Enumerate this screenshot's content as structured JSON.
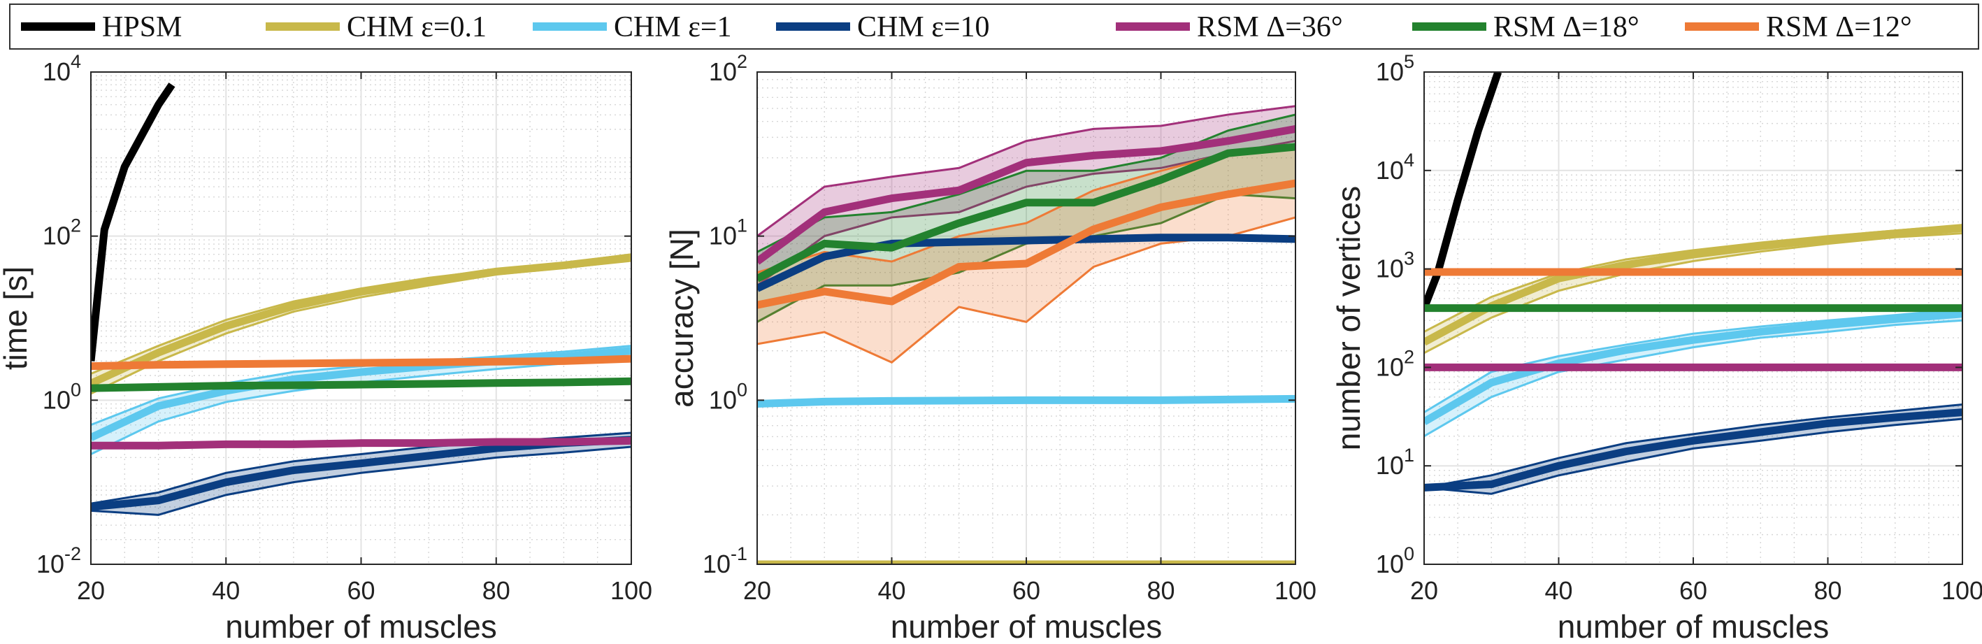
{
  "legend": {
    "items": [
      {
        "label": "HPSM",
        "color": "#000000"
      },
      {
        "label": "CHM ε=0.1",
        "color": "#C8B84A"
      },
      {
        "label": "CHM ε=1",
        "color": "#5DC8EE"
      },
      {
        "label": "CHM ε=10",
        "color": "#0B3E82"
      },
      {
        "label": "RSM Δ=36°",
        "color": "#A2307A"
      },
      {
        "label": "RSM Δ=18°",
        "color": "#23822E"
      },
      {
        "label": "RSM Δ=12°",
        "color": "#EE7A36"
      }
    ]
  },
  "chart_data": [
    {
      "type": "line",
      "xlabel": "number of muscles",
      "ylabel": "time [s]",
      "xlim": [
        20,
        100
      ],
      "ylim": [
        0.01,
        10000
      ],
      "yscale": "log",
      "xticks": [
        20,
        40,
        60,
        80,
        100
      ],
      "yticks": [
        {
          "value": 0.01,
          "base": "10",
          "exp": "-2"
        },
        {
          "value": 1,
          "base": "10",
          "exp": "0"
        },
        {
          "value": 100,
          "base": "10",
          "exp": "2"
        },
        {
          "value": 10000,
          "base": "10",
          "exp": "4"
        }
      ],
      "grid": true,
      "series": [
        {
          "name": "HPSM",
          "color": "#000000",
          "x": [
            20,
            22,
            25,
            30,
            32
          ],
          "y": [
            3,
            120,
            700,
            4000,
            7000
          ]
        },
        {
          "name": "CHM ε=0.1",
          "color": "#C8B84A",
          "x": [
            20,
            30,
            40,
            50,
            60,
            70,
            80,
            90,
            100
          ],
          "y": [
            1.6,
            3.8,
            8,
            14,
            21,
            28,
            37,
            44,
            55
          ],
          "band_low": [
            1.2,
            3.0,
            6.5,
            12,
            18,
            25,
            34,
            41,
            50
          ],
          "band_high": [
            2.1,
            4.6,
            9.5,
            16,
            23,
            31,
            39,
            47,
            60
          ]
        },
        {
          "name": "CHM ε=1",
          "color": "#5DC8EE",
          "x": [
            20,
            30,
            40,
            50,
            60,
            70,
            80,
            90,
            100
          ],
          "y": [
            0.35,
            0.85,
            1.3,
            1.8,
            2.2,
            2.6,
            3.0,
            3.4,
            4.0
          ],
          "band_low": [
            0.22,
            0.55,
            0.95,
            1.3,
            1.65,
            2.0,
            2.4,
            2.8,
            3.2
          ],
          "band_high": [
            0.5,
            1.05,
            1.6,
            2.2,
            2.6,
            3.0,
            3.4,
            3.9,
            4.6
          ]
        },
        {
          "name": "CHM ε=10",
          "color": "#0B3E82",
          "x": [
            20,
            30,
            40,
            50,
            60,
            70,
            80,
            90,
            100
          ],
          "y": [
            0.05,
            0.06,
            0.1,
            0.14,
            0.17,
            0.21,
            0.26,
            0.3,
            0.33
          ],
          "band_low": [
            0.045,
            0.04,
            0.07,
            0.1,
            0.13,
            0.16,
            0.2,
            0.23,
            0.27
          ],
          "band_high": [
            0.055,
            0.075,
            0.13,
            0.18,
            0.22,
            0.27,
            0.31,
            0.35,
            0.4
          ]
        },
        {
          "name": "RSM Δ=36°",
          "color": "#A2307A",
          "x": [
            20,
            30,
            40,
            50,
            60,
            70,
            80,
            90,
            100
          ],
          "y": [
            0.28,
            0.28,
            0.29,
            0.29,
            0.3,
            0.3,
            0.31,
            0.31,
            0.32
          ]
        },
        {
          "name": "RSM Δ=18°",
          "color": "#23822E",
          "x": [
            20,
            30,
            40,
            50,
            60,
            70,
            80,
            90,
            100
          ],
          "y": [
            1.4,
            1.45,
            1.5,
            1.52,
            1.55,
            1.58,
            1.62,
            1.65,
            1.7
          ]
        },
        {
          "name": "RSM Δ=12°",
          "color": "#EE7A36",
          "x": [
            20,
            30,
            40,
            50,
            60,
            70,
            80,
            90,
            100
          ],
          "y": [
            2.6,
            2.7,
            2.75,
            2.8,
            2.85,
            2.9,
            2.95,
            3.0,
            3.2
          ]
        }
      ]
    },
    {
      "type": "line",
      "xlabel": "number of muscles",
      "ylabel": "accuracy [N]",
      "xlim": [
        20,
        100
      ],
      "ylim": [
        0.1,
        100
      ],
      "yscale": "log",
      "xticks": [
        20,
        40,
        60,
        80,
        100
      ],
      "yticks": [
        {
          "value": 0.1,
          "base": "10",
          "exp": "-1"
        },
        {
          "value": 1,
          "base": "10",
          "exp": "0"
        },
        {
          "value": 10,
          "base": "10",
          "exp": "1"
        },
        {
          "value": 100,
          "base": "10",
          "exp": "2"
        }
      ],
      "grid": true,
      "series": [
        {
          "name": "CHM ε=0.1",
          "color": "#C8B84A",
          "x": [
            20,
            40,
            60,
            80,
            100
          ],
          "y": [
            0.1,
            0.1,
            0.1,
            0.1,
            0.1
          ]
        },
        {
          "name": "CHM ε=1",
          "color": "#5DC8EE",
          "x": [
            20,
            30,
            40,
            60,
            80,
            100
          ],
          "y": [
            0.95,
            0.98,
            0.99,
            1.0,
            1.0,
            1.02
          ]
        },
        {
          "name": "CHM ε=10",
          "color": "#0B3E82",
          "x": [
            20,
            30,
            40,
            50,
            60,
            70,
            80,
            90,
            100
          ],
          "y": [
            4.8,
            7.5,
            9.0,
            9.2,
            9.4,
            9.6,
            9.8,
            9.8,
            9.6
          ]
        },
        {
          "name": "RSM Δ=36°",
          "color": "#A2307A",
          "x": [
            20,
            30,
            40,
            50,
            60,
            70,
            80,
            90,
            100
          ],
          "y": [
            7,
            14,
            17,
            19,
            28,
            31,
            33,
            38,
            45
          ],
          "band_low": [
            5,
            10,
            13,
            14,
            20,
            24,
            26,
            32,
            38
          ],
          "band_high": [
            10,
            20,
            23,
            26,
            38,
            45,
            47,
            55,
            62
          ]
        },
        {
          "name": "RSM Δ=18°",
          "color": "#23822E",
          "x": [
            20,
            30,
            40,
            50,
            60,
            70,
            80,
            90,
            100
          ],
          "y": [
            5.5,
            9,
            8.5,
            12,
            16,
            16,
            22,
            32,
            35
          ],
          "band_low": [
            3,
            5,
            5,
            6,
            9,
            10,
            12,
            18,
            17
          ],
          "band_high": [
            8,
            13,
            14,
            18,
            25,
            25,
            30,
            44,
            55
          ]
        },
        {
          "name": "RSM Δ=12°",
          "color": "#EE7A36",
          "x": [
            20,
            30,
            40,
            50,
            60,
            70,
            80,
            90,
            100
          ],
          "y": [
            3.8,
            4.6,
            4.0,
            6.5,
            6.8,
            11,
            15,
            18,
            21
          ],
          "band_low": [
            2.2,
            2.6,
            1.7,
            3.7,
            3.0,
            6.5,
            9,
            10,
            13
          ],
          "band_high": [
            6,
            8,
            7,
            10,
            12,
            19,
            25,
            32,
            36
          ]
        }
      ]
    },
    {
      "type": "line",
      "xlabel": "number of muscles",
      "ylabel": "number of vertices",
      "xlim": [
        20,
        100
      ],
      "ylim": [
        1,
        100000
      ],
      "yscale": "log",
      "xticks": [
        20,
        40,
        60,
        80,
        100
      ],
      "yticks": [
        {
          "value": 1,
          "base": "10",
          "exp": "0"
        },
        {
          "value": 10,
          "base": "10",
          "exp": "1"
        },
        {
          "value": 100,
          "base": "10",
          "exp": "2"
        },
        {
          "value": 1000,
          "base": "10",
          "exp": "3"
        },
        {
          "value": 10000,
          "base": "10",
          "exp": "4"
        },
        {
          "value": 100000,
          "base": "10",
          "exp": "5"
        }
      ],
      "grid": true,
      "series": [
        {
          "name": "HPSM",
          "color": "#000000",
          "x": [
            20,
            22,
            25,
            28,
            31
          ],
          "y": [
            400,
            900,
            5000,
            25000,
            100000
          ]
        },
        {
          "name": "CHM ε=0.1",
          "color": "#C8B84A",
          "x": [
            20,
            30,
            40,
            50,
            60,
            70,
            80,
            90,
            100
          ],
          "y": [
            180,
            420,
            800,
            1100,
            1400,
            1700,
            2000,
            2300,
            2600
          ],
          "band_low": [
            140,
            320,
            600,
            900,
            1200,
            1500,
            1800,
            2100,
            2300
          ],
          "band_high": [
            230,
            520,
            900,
            1250,
            1550,
            1850,
            2150,
            2450,
            2800
          ]
        },
        {
          "name": "CHM ε=1",
          "color": "#5DC8EE",
          "x": [
            20,
            30,
            40,
            50,
            60,
            70,
            80,
            90,
            100
          ],
          "y": [
            28,
            70,
            110,
            150,
            190,
            230,
            270,
            310,
            350
          ],
          "band_low": [
            20,
            50,
            90,
            120,
            160,
            200,
            230,
            270,
            300
          ],
          "band_high": [
            35,
            90,
            130,
            170,
            220,
            260,
            300,
            340,
            390
          ]
        },
        {
          "name": "CHM ε=10",
          "color": "#0B3E82",
          "x": [
            20,
            30,
            40,
            50,
            60,
            70,
            80,
            90,
            100
          ],
          "y": [
            6,
            6.5,
            10,
            14,
            18,
            22,
            27,
            31,
            35
          ],
          "band_low": [
            6,
            5.2,
            8,
            11,
            15,
            18,
            22,
            26,
            30
          ],
          "band_high": [
            6,
            8,
            12,
            17,
            21,
            26,
            31,
            36,
            42
          ]
        },
        {
          "name": "RSM Δ=36°",
          "color": "#A2307A",
          "x": [
            20,
            100
          ],
          "y": [
            100,
            100
          ]
        },
        {
          "name": "RSM Δ=18°",
          "color": "#23822E",
          "x": [
            20,
            100
          ],
          "y": [
            400,
            400
          ]
        },
        {
          "name": "RSM Δ=12°",
          "color": "#EE7A36",
          "x": [
            20,
            100
          ],
          "y": [
            930,
            930
          ]
        }
      ]
    }
  ]
}
